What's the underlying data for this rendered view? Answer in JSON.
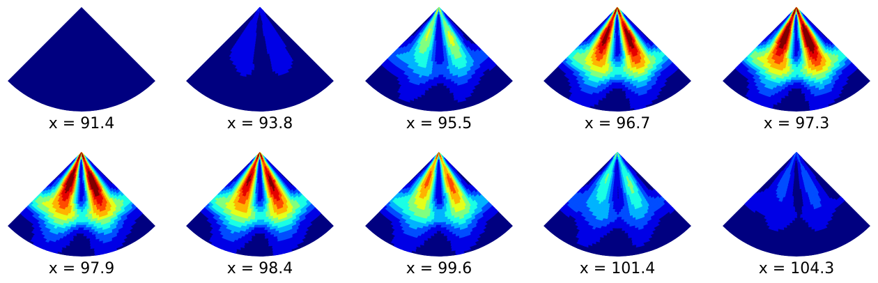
{
  "chart_data": {
    "type": "heatmap",
    "colormap": "jet",
    "panels": [
      {
        "label": "x = 91.4",
        "intensity": 0.02,
        "spread": 0.3
      },
      {
        "label": "x = 93.8",
        "intensity": 0.16,
        "spread": 0.35
      },
      {
        "label": "x = 95.5",
        "intensity": 0.55,
        "spread": 0.42
      },
      {
        "label": "x = 96.7",
        "intensity": 0.95,
        "spread": 0.52
      },
      {
        "label": "x = 97.3",
        "intensity": 1.0,
        "spread": 0.55
      },
      {
        "label": "x = 97.9",
        "intensity": 0.98,
        "spread": 0.58
      },
      {
        "label": "x = 98.4",
        "intensity": 0.92,
        "spread": 0.58
      },
      {
        "label": "x = 99.6",
        "intensity": 0.75,
        "spread": 0.55
      },
      {
        "label": "x = 101.4",
        "intensity": 0.45,
        "spread": 0.5
      },
      {
        "label": "x = 104.3",
        "intensity": 0.22,
        "spread": 0.45
      }
    ]
  }
}
